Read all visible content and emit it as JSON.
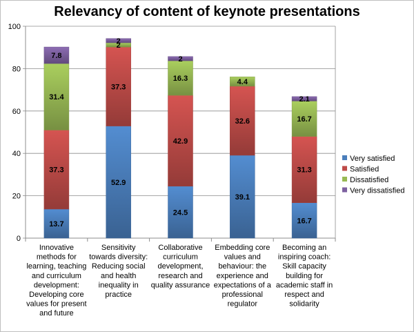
{
  "chart_data": {
    "type": "bar",
    "stacked": true,
    "title": "Relevancy of content of keynote presentations",
    "xlabel": "",
    "ylabel": "",
    "ylim": [
      0,
      100
    ],
    "yticks": [
      0,
      20,
      40,
      60,
      80,
      100
    ],
    "grid": true,
    "legend_position": "right",
    "categories": [
      [
        "Innovative",
        "methods for",
        "learning, teaching",
        "and curriculum",
        "development:",
        "Developing core",
        "values for present",
        "and future"
      ],
      [
        "Sensitivity",
        "towards diversity:",
        "Reducing social",
        "and health",
        "inequality in",
        "practice"
      ],
      [
        "Collaborative",
        "curriculum",
        "development,",
        "research and",
        "quality assurance"
      ],
      [
        "Embedding core",
        "values and",
        "behaviour: the",
        "experience and",
        "expectations of a",
        "professional",
        "regulator"
      ],
      [
        "Becoming an",
        "inspiring coach:",
        "Skill capacity",
        "building for",
        "academic staff in",
        "respect and",
        "solidarity"
      ]
    ],
    "series": [
      {
        "name": "Very satisfied",
        "color": "#4a7ebb",
        "values": [
          13.7,
          52.9,
          24.5,
          39.1,
          16.7
        ]
      },
      {
        "name": "Satisfied",
        "color": "#be4b48",
        "values": [
          37.3,
          37.3,
          42.9,
          32.6,
          31.3
        ]
      },
      {
        "name": "Dissatisfied",
        "color": "#98b954",
        "values": [
          31.4,
          2,
          16.3,
          4.4,
          16.7
        ]
      },
      {
        "name": "Very dissatisfied",
        "color": "#7d60a0",
        "values": [
          7.8,
          2,
          2,
          null,
          2.1
        ]
      }
    ]
  }
}
